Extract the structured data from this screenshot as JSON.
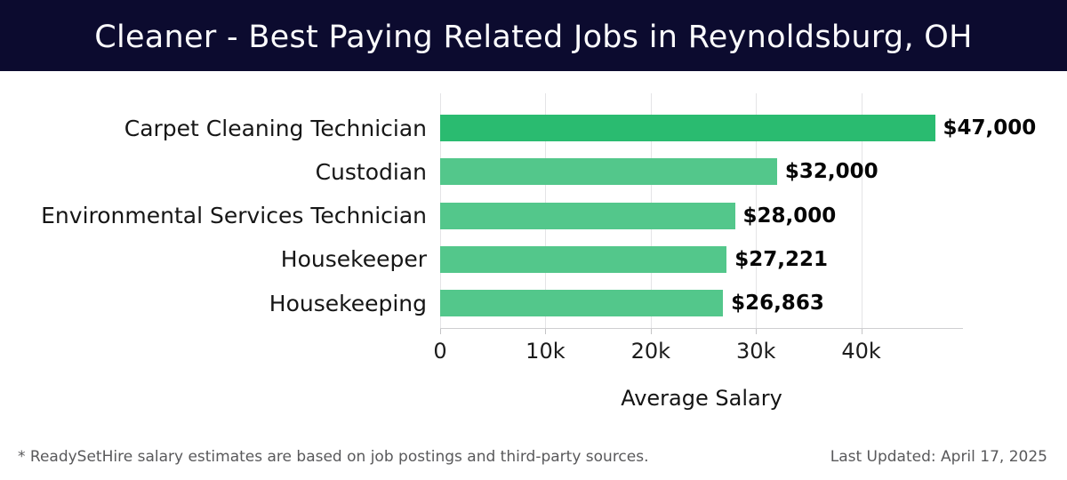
{
  "header": {
    "title": "Cleaner - Best Paying Related Jobs in Reynoldsburg, OH",
    "bg_color": "#0c0b2f"
  },
  "chart_data": {
    "type": "bar",
    "orientation": "horizontal",
    "title": "Cleaner - Best Paying Related Jobs in Reynoldsburg, OH",
    "categories": [
      "Carpet Cleaning Technician",
      "Custodian",
      "Environmental Services Technician",
      "Housekeeper",
      "Housekeeping"
    ],
    "values": [
      47000,
      32000,
      28000,
      27221,
      26863
    ],
    "value_labels": [
      "$47,000",
      "$32,000",
      "$28,000",
      "$27,221",
      "$26,863"
    ],
    "bar_colors": [
      "#2abb70",
      "#53c78b",
      "#53c78b",
      "#53c78b",
      "#53c78b"
    ],
    "xlabel": "Average Salary",
    "ylabel": "",
    "xlim": [
      0,
      49660
    ],
    "xticks": [
      0,
      10000,
      20000,
      30000,
      40000
    ],
    "xtick_labels": [
      "0",
      "10k",
      "20k",
      "30k",
      "40k"
    ],
    "grid": "vertical-light-gray",
    "legend": "none",
    "background": "#ffffff"
  },
  "footer": {
    "disclaimer": "* ReadySetHire salary estimates are based on job postings and third-party sources.",
    "last_updated": "Last Updated: April 17, 2025"
  }
}
